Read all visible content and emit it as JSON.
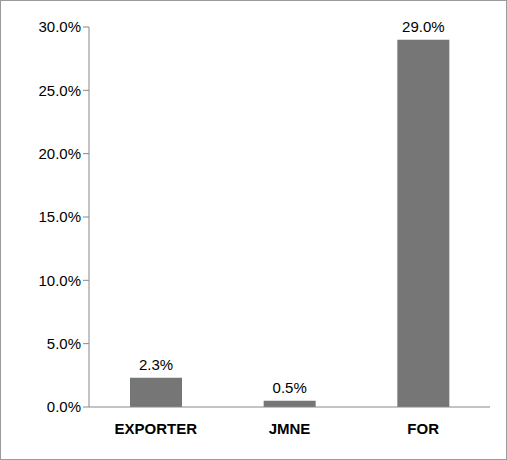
{
  "chart_data": {
    "type": "bar",
    "categories": [
      "EXPORTER",
      "JMNE",
      "FOR"
    ],
    "values": [
      2.3,
      0.5,
      29.0
    ],
    "value_labels": [
      "2.3%",
      "0.5%",
      "29.0%"
    ],
    "color": "#767676",
    "ylim": [
      0,
      30
    ],
    "yticks": [
      {
        "value": 0,
        "label": "0.0%"
      },
      {
        "value": 5,
        "label": "5.0%"
      },
      {
        "value": 10,
        "label": "10.0%"
      },
      {
        "value": 15,
        "label": "15.0%"
      },
      {
        "value": 20,
        "label": "20.0%"
      },
      {
        "value": 25,
        "label": "25.0%"
      },
      {
        "value": 30,
        "label": "30.0%"
      }
    ],
    "grid": false,
    "data_labels": true
  }
}
